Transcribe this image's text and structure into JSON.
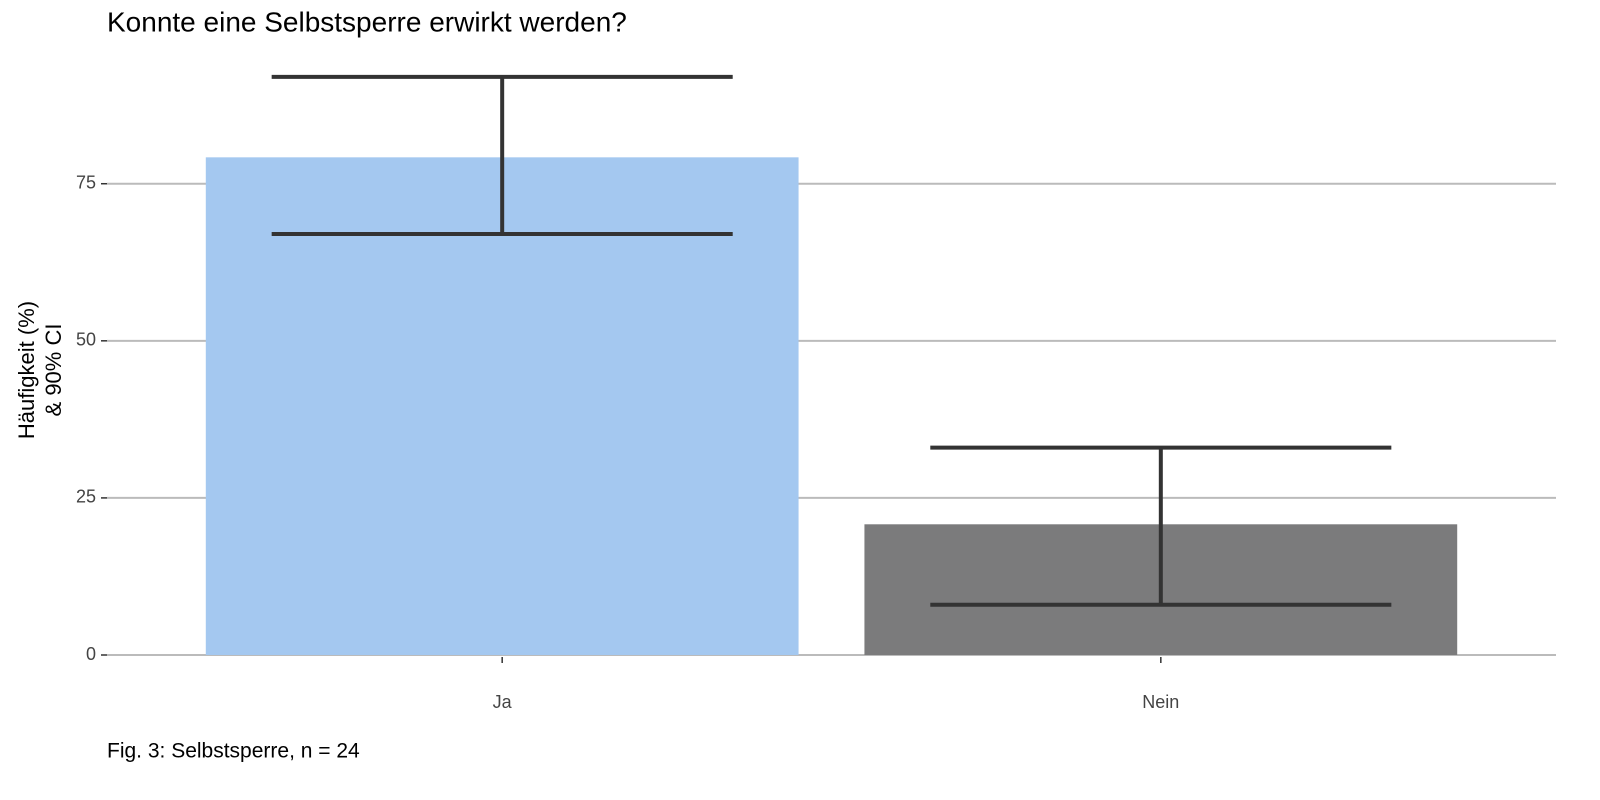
{
  "chart_data": {
    "type": "bar",
    "title": "Konnte eine Selbstsperre erwirkt werden?",
    "y_label": [
      "Häufigkeit (%)",
      "& 90% CI"
    ],
    "caption": "Fig. 3: Selbstsperre, n = 24",
    "categories": [
      "Ja",
      "Nein"
    ],
    "values": [
      79.2,
      20.8
    ],
    "ci_low": [
      67,
      8
    ],
    "ci_high": [
      92,
      33
    ],
    "colors": [
      "#a4c8f0",
      "#7b7b7c"
    ],
    "ylim": [
      0,
      96.6
    ],
    "yticks": [
      0,
      25,
      50,
      75
    ],
    "grid": true
  }
}
